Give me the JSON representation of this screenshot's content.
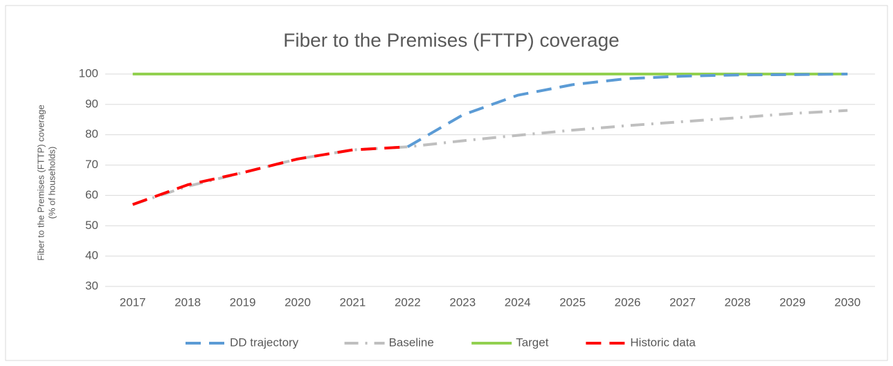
{
  "chart_data": {
    "type": "line",
    "title": "Fiber to the Premises (FTTP) coverage",
    "y_axis_label": [
      "Fiber to the Premises  (FTTP) coverage",
      "(% of households)"
    ],
    "categories": [
      "2017",
      "2018",
      "2019",
      "2020",
      "2021",
      "2022",
      "2023",
      "2024",
      "2025",
      "2026",
      "2027",
      "2028",
      "2029",
      "2030"
    ],
    "series": [
      {
        "name": "DD trajectory",
        "color": "#5b9bd5",
        "line_style": "dashed",
        "values": [
          null,
          null,
          null,
          null,
          null,
          76,
          86.5,
          93,
          96.5,
          98.5,
          99.3,
          99.7,
          99.8,
          100
        ]
      },
      {
        "name": "Baseline",
        "color": "#bfbfbf",
        "line_style": "dash-dot",
        "values": [
          57,
          63,
          67.5,
          72,
          75,
          76,
          78,
          79.8,
          81.5,
          83,
          84.3,
          85.6,
          87,
          88
        ]
      },
      {
        "name": "Target",
        "color": "#92d050",
        "line_style": "solid",
        "values": [
          100,
          100,
          100,
          100,
          100,
          100,
          100,
          100,
          100,
          100,
          100,
          100,
          100,
          100
        ]
      },
      {
        "name": "Historic data",
        "color": "#ff0000",
        "line_style": "dashed",
        "values": [
          57,
          63.5,
          67.5,
          72,
          75,
          76,
          null,
          null,
          null,
          null,
          null,
          null,
          null,
          null
        ]
      }
    ],
    "ylim": [
      30,
      100
    ],
    "yticks": [
      30,
      40,
      50,
      60,
      70,
      80,
      90,
      100
    ],
    "grid": true,
    "legend": "bottom"
  }
}
